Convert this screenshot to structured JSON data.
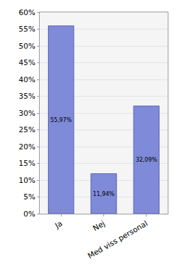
{
  "chart_data": {
    "type": "bar",
    "categories": [
      "Ja",
      "Nej",
      "Med viss personal"
    ],
    "values": [
      55.97,
      11.94,
      32.09
    ],
    "value_labels": [
      "55,97%",
      "11,94%",
      "32,09%"
    ],
    "data_labels": true,
    "color": "#7f8ad8",
    "ylim": [
      0,
      60
    ],
    "yticks": [
      {
        "value": 0,
        "label": "0%"
      },
      {
        "value": 5,
        "label": "5%"
      },
      {
        "value": 10,
        "label": "10%"
      },
      {
        "value": 15,
        "label": "15%"
      },
      {
        "value": 20,
        "label": "20%"
      },
      {
        "value": 25,
        "label": "25%"
      },
      {
        "value": 30,
        "label": "30%"
      },
      {
        "value": 35,
        "label": "35%"
      },
      {
        "value": 40,
        "label": "40%"
      },
      {
        "value": 45,
        "label": "45%"
      },
      {
        "value": 50,
        "label": "50%"
      },
      {
        "value": 55,
        "label": "55%"
      },
      {
        "value": 60,
        "label": "60%"
      }
    ],
    "grid": true
  }
}
